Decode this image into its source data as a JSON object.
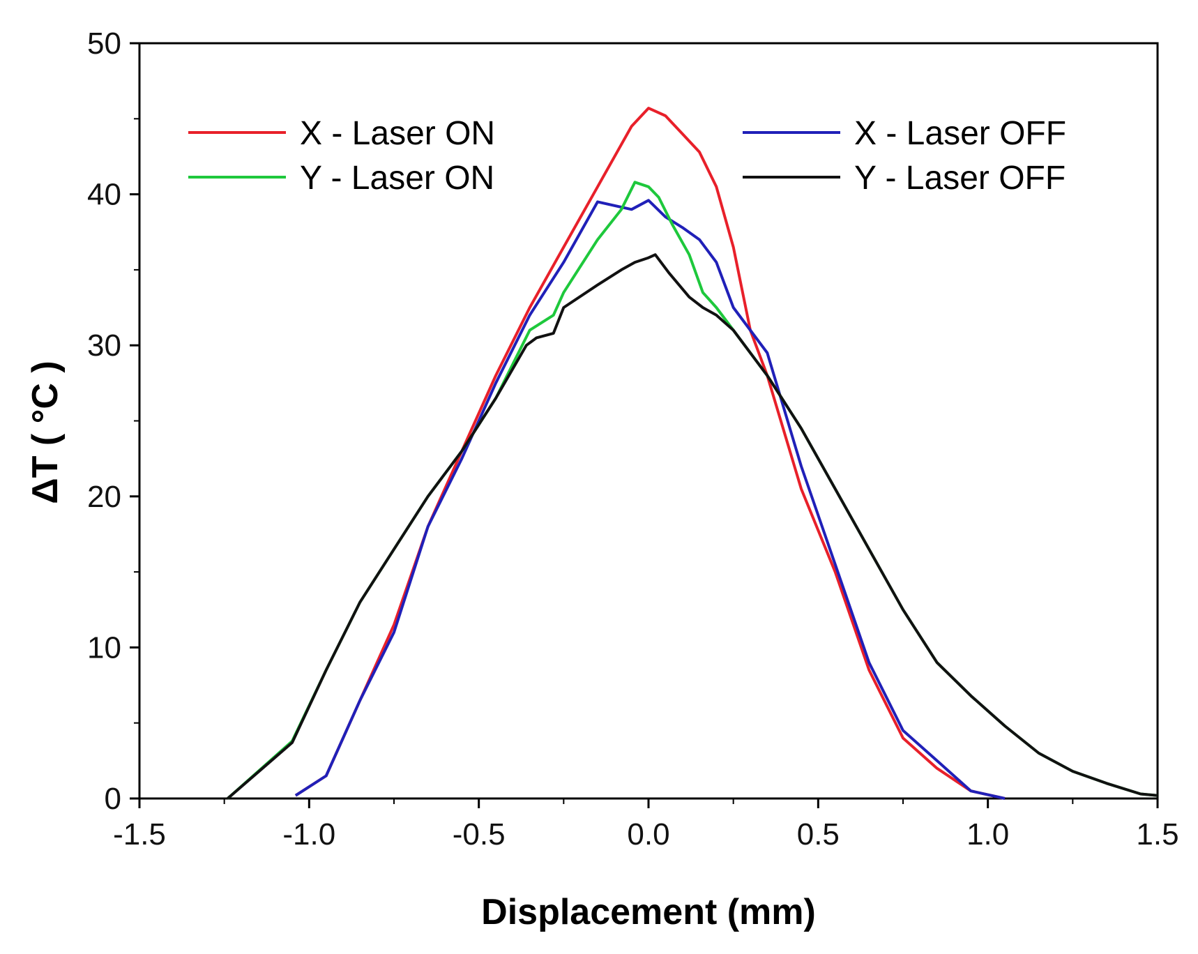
{
  "chart_data": {
    "type": "line",
    "xlabel": "Displacement (mm)",
    "ylabel": "ΔT ( °C )",
    "xlim": [
      -1.5,
      1.5
    ],
    "ylim": [
      0,
      50
    ],
    "xticks": [
      "-1.5",
      "-1.0",
      "-0.5",
      "0.0",
      "0.5",
      "1.0",
      "1.5"
    ],
    "yticks": [
      "0",
      "10",
      "20",
      "30",
      "40",
      "50"
    ],
    "grid": false,
    "legend_position": "top",
    "series": [
      {
        "name": "X - Laser ON",
        "color": "#e8202a",
        "x": [
          -1.04,
          -0.95,
          -0.85,
          -0.75,
          -0.65,
          -0.55,
          -0.45,
          -0.35,
          -0.25,
          -0.15,
          -0.05,
          0.0,
          0.05,
          0.1,
          0.15,
          0.2,
          0.25,
          0.3,
          0.35,
          0.45,
          0.55,
          0.65,
          0.75,
          0.85,
          0.95,
          1.05
        ],
        "y": [
          0.2,
          1.5,
          6.5,
          11.5,
          18.0,
          23.0,
          28.0,
          32.5,
          36.5,
          40.5,
          44.5,
          45.7,
          45.2,
          44.0,
          42.8,
          40.5,
          36.5,
          31.0,
          28.0,
          20.5,
          15.0,
          8.5,
          4.0,
          2.0,
          0.5,
          0.0
        ]
      },
      {
        "name": "X - Laser OFF",
        "color": "#2020b8",
        "x": [
          -1.04,
          -0.95,
          -0.85,
          -0.75,
          -0.65,
          -0.55,
          -0.45,
          -0.35,
          -0.25,
          -0.15,
          -0.05,
          0.0,
          0.05,
          0.1,
          0.15,
          0.2,
          0.25,
          0.3,
          0.35,
          0.45,
          0.55,
          0.65,
          0.75,
          0.85,
          0.95,
          1.05
        ],
        "y": [
          0.2,
          1.5,
          6.5,
          11.0,
          18.0,
          22.5,
          27.5,
          32.0,
          35.5,
          39.5,
          39.0,
          39.6,
          38.5,
          37.8,
          37.0,
          35.5,
          32.5,
          31.0,
          29.5,
          22.0,
          15.5,
          9.0,
          4.5,
          2.5,
          0.5,
          0.0
        ]
      },
      {
        "name": "Y - Laser ON",
        "color": "#1ec83c",
        "x": [
          -1.24,
          -1.05,
          -0.95,
          -0.85,
          -0.75,
          -0.65,
          -0.55,
          -0.45,
          -0.35,
          -0.28,
          -0.25,
          -0.15,
          -0.08,
          -0.04,
          0.0,
          0.03,
          0.07,
          0.12,
          0.16,
          0.2,
          0.25,
          0.35,
          0.45,
          0.55,
          0.65,
          0.75,
          0.85,
          0.95,
          1.05,
          1.15,
          1.25,
          1.35,
          1.45,
          1.5
        ],
        "y": [
          0.0,
          3.8,
          8.5,
          13.0,
          16.5,
          20.0,
          23.0,
          26.5,
          31.0,
          32.0,
          33.5,
          37.0,
          39.0,
          40.8,
          40.5,
          39.8,
          38.0,
          36.0,
          33.5,
          32.5,
          31.0,
          28.0,
          24.5,
          20.5,
          16.5,
          12.5,
          9.0,
          6.8,
          4.8,
          3.0,
          1.8,
          1.0,
          0.3,
          0.2
        ]
      },
      {
        "name": "Y - Laser OFF",
        "color": "#111111",
        "x": [
          -1.24,
          -1.05,
          -0.95,
          -0.85,
          -0.75,
          -0.65,
          -0.55,
          -0.45,
          -0.36,
          -0.33,
          -0.28,
          -0.25,
          -0.15,
          -0.08,
          -0.04,
          0.0,
          0.02,
          0.06,
          0.12,
          0.16,
          0.2,
          0.25,
          0.35,
          0.45,
          0.55,
          0.65,
          0.75,
          0.85,
          0.95,
          1.05,
          1.15,
          1.25,
          1.35,
          1.45,
          1.5
        ],
        "y": [
          0.0,
          3.7,
          8.5,
          13.0,
          16.5,
          20.0,
          23.0,
          26.5,
          30.0,
          30.5,
          30.8,
          32.5,
          34.0,
          35.0,
          35.5,
          35.8,
          36.0,
          34.8,
          33.2,
          32.5,
          32.0,
          31.0,
          28.0,
          24.5,
          20.5,
          16.5,
          12.5,
          9.0,
          6.8,
          4.8,
          3.0,
          1.8,
          1.0,
          0.3,
          0.2
        ]
      }
    ]
  }
}
